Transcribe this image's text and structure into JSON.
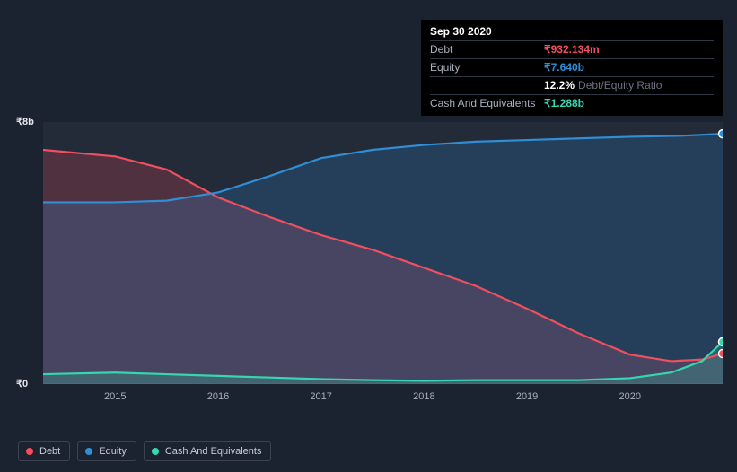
{
  "tooltip": {
    "date": "Sep 30 2020",
    "rows": [
      {
        "label": "Debt",
        "value": "₹932.134m",
        "color": "#ef4f5f"
      },
      {
        "label": "Equity",
        "value": "₹7.640b",
        "color": "#2f8ed6"
      },
      {
        "label": "",
        "value": "12.2%",
        "suffix": "Debt/Equity Ratio",
        "color": "#ffffff"
      },
      {
        "label": "Cash And Equivalents",
        "value": "₹1.288b",
        "color": "#36d6b0"
      }
    ]
  },
  "chart": {
    "type": "area",
    "background_color": "#1c2330",
    "plot_background": "rgba(100,110,130,0.10)",
    "fig_width": 757,
    "fig_height": 292,
    "ylim": [
      0,
      8
    ],
    "yticks": [
      {
        "v": 0,
        "label": "₹0"
      },
      {
        "v": 8,
        "label": "₹8b"
      }
    ],
    "xlim": [
      2014.3,
      2020.9
    ],
    "xticks": [
      2015,
      2016,
      2017,
      2018,
      2019,
      2020
    ],
    "gridline_color": "#3b4250",
    "axis_label_color": "#e5e7eb",
    "tick_label_color": "#a9b0bc",
    "axis_fontsize": 11,
    "line_width": 2.2,
    "fill_opacity": 0.22,
    "series": [
      {
        "name": "Debt",
        "color": "#ef4f5f",
        "values": [
          [
            2014.3,
            7.15
          ],
          [
            2015.0,
            6.95
          ],
          [
            2015.5,
            6.55
          ],
          [
            2016.0,
            5.7
          ],
          [
            2016.5,
            5.1
          ],
          [
            2017.0,
            4.55
          ],
          [
            2017.5,
            4.1
          ],
          [
            2018.0,
            3.55
          ],
          [
            2018.5,
            3.0
          ],
          [
            2019.0,
            2.3
          ],
          [
            2019.5,
            1.55
          ],
          [
            2020.0,
            0.9
          ],
          [
            2020.4,
            0.7
          ],
          [
            2020.7,
            0.75
          ],
          [
            2020.9,
            0.93
          ]
        ]
      },
      {
        "name": "Equity",
        "color": "#2f8ed6",
        "values": [
          [
            2014.3,
            5.55
          ],
          [
            2015.0,
            5.55
          ],
          [
            2015.5,
            5.6
          ],
          [
            2016.0,
            5.85
          ],
          [
            2016.5,
            6.35
          ],
          [
            2017.0,
            6.9
          ],
          [
            2017.5,
            7.15
          ],
          [
            2018.0,
            7.3
          ],
          [
            2018.5,
            7.4
          ],
          [
            2019.0,
            7.45
          ],
          [
            2019.5,
            7.5
          ],
          [
            2020.0,
            7.55
          ],
          [
            2020.5,
            7.58
          ],
          [
            2020.9,
            7.64
          ]
        ]
      },
      {
        "name": "Cash And Equivalents",
        "color": "#36d6b0",
        "values": [
          [
            2014.3,
            0.3
          ],
          [
            2015.0,
            0.35
          ],
          [
            2015.5,
            0.3
          ],
          [
            2016.0,
            0.25
          ],
          [
            2016.5,
            0.2
          ],
          [
            2017.0,
            0.15
          ],
          [
            2017.5,
            0.12
          ],
          [
            2018.0,
            0.1
          ],
          [
            2018.5,
            0.12
          ],
          [
            2019.0,
            0.12
          ],
          [
            2019.5,
            0.12
          ],
          [
            2020.0,
            0.18
          ],
          [
            2020.4,
            0.35
          ],
          [
            2020.7,
            0.7
          ],
          [
            2020.9,
            1.29
          ]
        ]
      }
    ]
  },
  "legend": {
    "border_color": "#3b4250",
    "text_color": "#c7ccd4",
    "items": [
      {
        "label": "Debt",
        "color": "#ef4f5f"
      },
      {
        "label": "Equity",
        "color": "#2f8ed6"
      },
      {
        "label": "Cash And Equivalents",
        "color": "#36d6b0"
      }
    ]
  }
}
